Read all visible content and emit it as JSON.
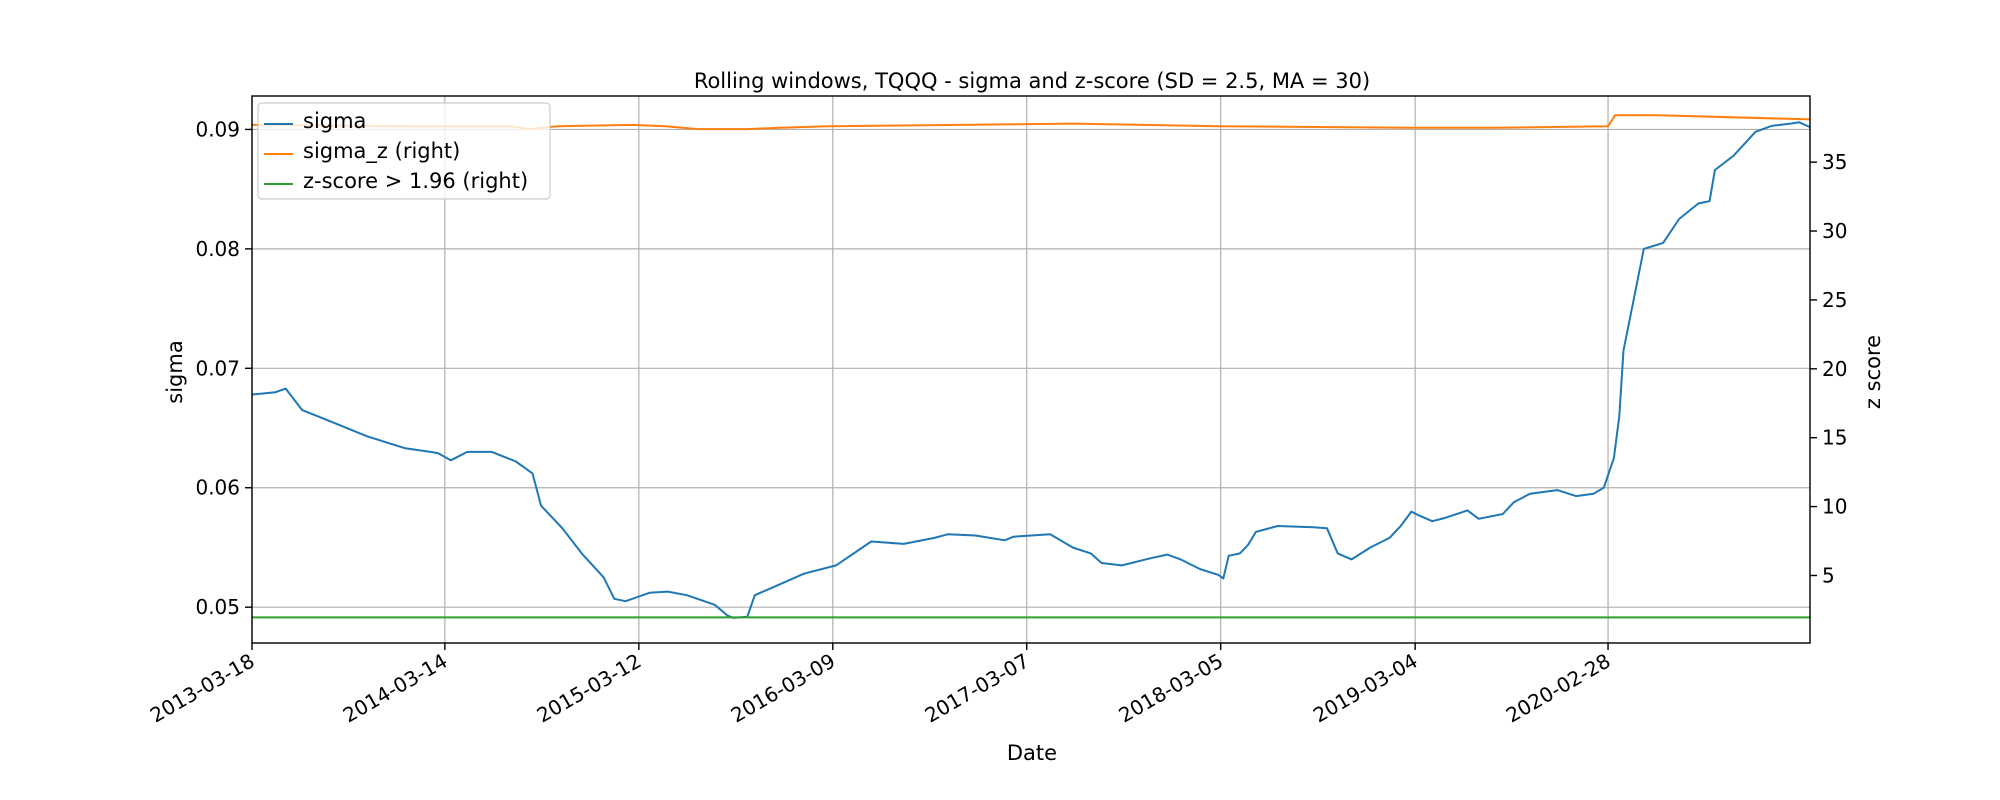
{
  "chart_data": {
    "type": "line",
    "title": "Rolling windows, TQQQ - sigma and z-score (SD = 2.5, MA = 30)",
    "xlabel": "Date",
    "ylabel": "sigma",
    "ylabel_right": "z score",
    "x_start": "2013-03-18",
    "x_end": "2021-03-12",
    "x_ticks": [
      "2013-03-18",
      "2014-03-14",
      "2015-03-12",
      "2016-03-09",
      "2017-03-07",
      "2018-03-05",
      "2019-03-04",
      "2020-02-28"
    ],
    "ylim": [
      0.047,
      0.0928
    ],
    "y_ticks": [
      "0.05",
      "0.06",
      "0.07",
      "0.08",
      "0.09"
    ],
    "ylim_right": [
      0.1,
      39.8
    ],
    "y_ticks_right": [
      "5",
      "10",
      "15",
      "20",
      "25",
      "30",
      "35"
    ],
    "grid": true,
    "legend_position": "upper left",
    "series": [
      {
        "name": "sigma",
        "axis": "left",
        "color": "#1f77b4",
        "points": [
          [
            "2013-03-18",
            0.0678
          ],
          [
            "2013-05-01",
            0.068
          ],
          [
            "2013-05-20",
            0.0683
          ],
          [
            "2013-06-20",
            0.0665
          ],
          [
            "2013-08-15",
            0.0655
          ],
          [
            "2013-10-20",
            0.0643
          ],
          [
            "2013-12-30",
            0.0633
          ],
          [
            "2014-02-15",
            0.063
          ],
          [
            "2014-03-01",
            0.0629
          ],
          [
            "2014-03-25",
            0.0623
          ],
          [
            "2014-04-25",
            0.063
          ],
          [
            "2014-06-10",
            0.063
          ],
          [
            "2014-07-25",
            0.0622
          ],
          [
            "2014-08-25",
            0.0612
          ],
          [
            "2014-09-10",
            0.0585
          ],
          [
            "2014-10-20",
            0.0566
          ],
          [
            "2014-11-25",
            0.0545
          ],
          [
            "2015-01-05",
            0.0525
          ],
          [
            "2015-01-25",
            0.0507
          ],
          [
            "2015-02-15",
            0.0505
          ],
          [
            "2015-04-01",
            0.0512
          ],
          [
            "2015-05-05",
            0.0513
          ],
          [
            "2015-06-10",
            0.051
          ],
          [
            "2015-08-01",
            0.0502
          ],
          [
            "2015-08-25",
            0.0493
          ],
          [
            "2015-09-05",
            0.0491
          ],
          [
            "2015-10-01",
            0.0492
          ],
          [
            "2015-10-15",
            0.051
          ],
          [
            "2015-11-25",
            0.0518
          ],
          [
            "2016-01-15",
            0.0528
          ],
          [
            "2016-03-15",
            0.0535
          ],
          [
            "2016-05-20",
            0.0555
          ],
          [
            "2016-07-20",
            0.0553
          ],
          [
            "2016-09-15",
            0.0558
          ],
          [
            "2016-10-10",
            0.0561
          ],
          [
            "2016-12-01",
            0.056
          ],
          [
            "2017-01-25",
            0.0556
          ],
          [
            "2017-02-10",
            0.0559
          ],
          [
            "2017-04-20",
            0.0561
          ],
          [
            "2017-06-01",
            0.055
          ],
          [
            "2017-07-05",
            0.0545
          ],
          [
            "2017-07-25",
            0.0537
          ],
          [
            "2017-09-01",
            0.0535
          ],
          [
            "2017-10-25",
            0.0541
          ],
          [
            "2017-11-25",
            0.0544
          ],
          [
            "2017-12-20",
            0.054
          ],
          [
            "2018-01-25",
            0.0532
          ],
          [
            "2018-03-01",
            0.0527
          ],
          [
            "2018-03-10",
            0.0524
          ],
          [
            "2018-03-20",
            0.0543
          ],
          [
            "2018-04-10",
            0.0545
          ],
          [
            "2018-04-25",
            0.0552
          ],
          [
            "2018-05-10",
            0.0563
          ],
          [
            "2018-06-20",
            0.0568
          ],
          [
            "2018-08-25",
            0.0567
          ],
          [
            "2018-09-20",
            0.0566
          ],
          [
            "2018-10-10",
            0.0545
          ],
          [
            "2018-11-05",
            0.054
          ],
          [
            "2018-12-10",
            0.055
          ],
          [
            "2019-01-15",
            0.0558
          ],
          [
            "2019-02-05",
            0.0568
          ],
          [
            "2019-02-25",
            0.058
          ],
          [
            "2019-03-10",
            0.0577
          ],
          [
            "2019-04-05",
            0.0572
          ],
          [
            "2019-05-01",
            0.0575
          ],
          [
            "2019-06-10",
            0.0581
          ],
          [
            "2019-07-01",
            0.0574
          ],
          [
            "2019-08-15",
            0.0578
          ],
          [
            "2019-09-05",
            0.0588
          ],
          [
            "2019-10-05",
            0.0595
          ],
          [
            "2019-11-25",
            0.0598
          ],
          [
            "2019-12-30",
            0.0593
          ],
          [
            "2020-02-01",
            0.0595
          ],
          [
            "2020-02-20",
            0.06
          ],
          [
            "2020-03-10",
            0.0625
          ],
          [
            "2020-03-20",
            0.066
          ],
          [
            "2020-03-28",
            0.0715
          ],
          [
            "2020-04-15",
            0.0755
          ],
          [
            "2020-05-05",
            0.08
          ],
          [
            "2020-06-10",
            0.0805
          ],
          [
            "2020-07-10",
            0.0825
          ],
          [
            "2020-08-15",
            0.0838
          ],
          [
            "2020-09-05",
            0.084
          ],
          [
            "2020-09-15",
            0.0866
          ],
          [
            "2020-10-20",
            0.0878
          ],
          [
            "2020-11-30",
            0.0898
          ],
          [
            "2020-12-30",
            0.0903
          ],
          [
            "2021-02-05",
            0.0905
          ],
          [
            "2021-02-20",
            0.0906
          ],
          [
            "2021-03-12",
            0.0902
          ]
        ]
      },
      {
        "name": "sigma_z (right)",
        "axis": "right",
        "color": "#ff7f0e",
        "points": [
          [
            "2013-03-18",
            37.7
          ],
          [
            "2014-01-01",
            37.6
          ],
          [
            "2014-07-15",
            37.6
          ],
          [
            "2014-08-20",
            37.4
          ],
          [
            "2014-10-10",
            37.6
          ],
          [
            "2015-03-01",
            37.7
          ],
          [
            "2015-05-01",
            37.6
          ],
          [
            "2015-07-01",
            37.4
          ],
          [
            "2015-10-01",
            37.4
          ],
          [
            "2015-12-01",
            37.5
          ],
          [
            "2016-03-01",
            37.6
          ],
          [
            "2017-06-01",
            37.8
          ],
          [
            "2018-03-01",
            37.6
          ],
          [
            "2019-03-01",
            37.5
          ],
          [
            "2019-08-01",
            37.5
          ],
          [
            "2020-02-28",
            37.6
          ],
          [
            "2020-03-12",
            38.4
          ],
          [
            "2020-06-01",
            38.4
          ],
          [
            "2021-03-12",
            38.1
          ]
        ]
      },
      {
        "name": "z-score > 1.96 (right)",
        "axis": "right",
        "color": "#2ca02c",
        "points": [
          [
            "2013-03-18",
            1.96
          ],
          [
            "2021-03-12",
            1.96
          ]
        ]
      }
    ]
  }
}
